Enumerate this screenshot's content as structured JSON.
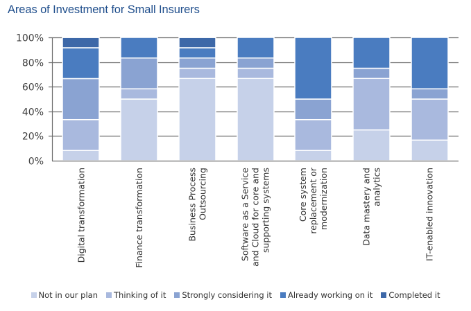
{
  "chart_data": {
    "type": "bar",
    "stacked": true,
    "title": "Areas of Investment for Small Insurers",
    "xlabel": "",
    "ylabel": "",
    "ylim": [
      0,
      100
    ],
    "yticks": [
      0,
      20,
      40,
      60,
      80,
      100
    ],
    "ytick_labels": [
      "0%",
      "20%",
      "40%",
      "60%",
      "80%",
      "100%"
    ],
    "grid": true,
    "legend_position": "bottom",
    "categories": [
      [
        "Digital transformation"
      ],
      [
        "Finance transformation"
      ],
      [
        "Business Process",
        "Outsourcing"
      ],
      [
        "Software as a Service",
        "and Cloud for core and",
        "supporting systems"
      ],
      [
        "Core system",
        "replacement or",
        "modernization"
      ],
      [
        "Data mastery and",
        "analytics"
      ],
      [
        "IT-enabled innovation"
      ]
    ],
    "category_names": [
      "Digital transformation",
      "Finance transformation",
      "Business Process Outsourcing",
      "Software as a Service and Cloud for core and supporting systems",
      "Core system replacement or modernization",
      "Data mastery and analytics",
      "IT-enabled innovation"
    ],
    "series": [
      {
        "name": "Not in our plan",
        "color": "#c6d1e9",
        "values": [
          8.3,
          50.0,
          66.7,
          66.7,
          8.3,
          25.0,
          16.7
        ]
      },
      {
        "name": "Thinking of it",
        "color": "#a9b9de",
        "values": [
          25.0,
          8.3,
          8.3,
          8.3,
          25.0,
          41.7,
          33.3
        ]
      },
      {
        "name": "Strongly considering it",
        "color": "#8aa3d2",
        "values": [
          33.3,
          25.0,
          8.3,
          8.3,
          16.7,
          8.3,
          8.3
        ]
      },
      {
        "name": "Already working on it",
        "color": "#4a7cc0",
        "values": [
          25.0,
          16.7,
          8.3,
          16.7,
          50.0,
          25.0,
          41.7
        ]
      },
      {
        "name": "Completed it",
        "color": "#3d68a8",
        "values": [
          8.3,
          0.0,
          8.3,
          0.0,
          0.0,
          0.0,
          0.0
        ]
      }
    ]
  }
}
